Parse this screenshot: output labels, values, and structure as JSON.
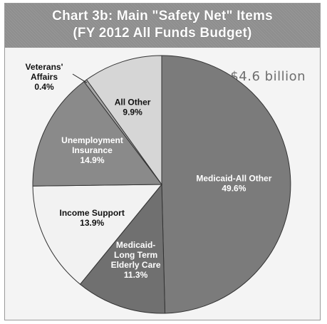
{
  "chart_data": {
    "type": "pie",
    "title_lines": [
      "Chart 3b: Main \"Safety Net\" Items",
      "(FY 2012 All Funds Budget)"
    ],
    "total_label": "$4.6 billion",
    "slices": [
      {
        "name_lines": [
          "Medicaid-All Other"
        ],
        "value": 49.6,
        "label": "49.6%",
        "color": "#7b7b7b",
        "text_color": "#ffffff"
      },
      {
        "name_lines": [
          "Medicaid-",
          "Long Term",
          "Elderly Care"
        ],
        "value": 11.3,
        "label": "11.3%",
        "color": "#707070",
        "text_color": "#ffffff"
      },
      {
        "name_lines": [
          "Income Support"
        ],
        "value": 13.9,
        "label": "13.9%",
        "color": "#f2f2f2",
        "text_color": "#111111"
      },
      {
        "name_lines": [
          "Unemployment",
          "Insurance"
        ],
        "value": 14.9,
        "label": "14.9%",
        "color": "#8a8a8a",
        "text_color": "#ffffff"
      },
      {
        "name_lines": [
          "Veterans'",
          "Affairs"
        ],
        "value": 0.4,
        "label": "0.4%",
        "color": "#a8a8a8",
        "text_color": "#111111"
      },
      {
        "name_lines": [
          "All Other"
        ],
        "value": 9.9,
        "label": "9.9%",
        "color": "#d6d6d6",
        "text_color": "#111111"
      }
    ]
  }
}
